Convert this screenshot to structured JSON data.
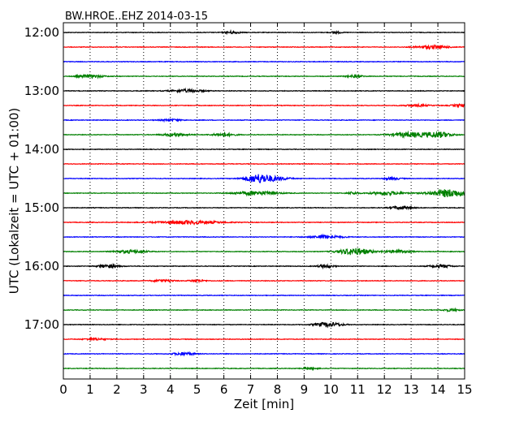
{
  "chart_data": {
    "type": "line",
    "title": "BW.HROE..EHZ 2014-03-15",
    "xlabel": "Zeit  [min]",
    "ylabel": "UTC (Lokalzeit = UTC + 01:00)",
    "xlim": [
      0,
      15
    ],
    "x_ticks": [
      "0",
      "1",
      "2",
      "3",
      "4",
      "5",
      "6",
      "7",
      "8",
      "9",
      "10",
      "11",
      "12",
      "13",
      "14",
      "15"
    ],
    "y_ticks": [
      "12:00",
      "13:00",
      "14:00",
      "15:00",
      "16:00",
      "17:00"
    ],
    "grid": "vertical dotted",
    "trace_colors": [
      "#000000",
      "#ff0000",
      "#0000ff",
      "#008000"
    ],
    "traces": [
      {
        "start": "12:00",
        "color": "#000000",
        "bursts": [
          {
            "x": 6.3,
            "amp": 0.25,
            "width": 0.3
          },
          {
            "x": 10.2,
            "amp": 0.2,
            "width": 0.2
          }
        ]
      },
      {
        "start": "12:15",
        "color": "#ff0000",
        "bursts": [
          {
            "x": 13.8,
            "amp": 0.35,
            "width": 0.6
          }
        ]
      },
      {
        "start": "12:30",
        "color": "#0000ff",
        "bursts": []
      },
      {
        "start": "12:45",
        "color": "#008000",
        "bursts": [
          {
            "x": 1.0,
            "amp": 0.3,
            "width": 0.5
          },
          {
            "x": 10.9,
            "amp": 0.25,
            "width": 0.3
          }
        ]
      },
      {
        "start": "13:00",
        "color": "#000000",
        "bursts": [
          {
            "x": 4.6,
            "amp": 0.3,
            "width": 0.6
          }
        ]
      },
      {
        "start": "13:15",
        "color": "#ff0000",
        "bursts": [
          {
            "x": 13.2,
            "amp": 0.2,
            "width": 0.5
          },
          {
            "x": 14.8,
            "amp": 0.25,
            "width": 0.3
          }
        ]
      },
      {
        "start": "13:30",
        "color": "#0000ff",
        "bursts": [
          {
            "x": 4.0,
            "amp": 0.2,
            "width": 0.4
          }
        ]
      },
      {
        "start": "13:45",
        "color": "#008000",
        "bursts": [
          {
            "x": 4.2,
            "amp": 0.3,
            "width": 0.5
          },
          {
            "x": 6.0,
            "amp": 0.35,
            "width": 0.4
          },
          {
            "x": 12.9,
            "amp": 0.5,
            "width": 0.6
          },
          {
            "x": 14.0,
            "amp": 0.6,
            "width": 0.5
          }
        ]
      },
      {
        "start": "14:00",
        "color": "#000000",
        "bursts": []
      },
      {
        "start": "14:15",
        "color": "#ff0000",
        "bursts": []
      },
      {
        "start": "14:30",
        "color": "#0000ff",
        "bursts": [
          {
            "x": 7.3,
            "amp": 0.9,
            "width": 0.5
          },
          {
            "x": 8.0,
            "amp": 0.3,
            "width": 0.5
          },
          {
            "x": 12.3,
            "amp": 0.25,
            "width": 0.3
          }
        ]
      },
      {
        "start": "14:45",
        "color": "#008000",
        "bursts": [
          {
            "x": 7.2,
            "amp": 0.4,
            "width": 0.8
          },
          {
            "x": 10.8,
            "amp": 0.25,
            "width": 0.2
          },
          {
            "x": 12.1,
            "amp": 0.35,
            "width": 0.6
          },
          {
            "x": 14.4,
            "amp": 0.8,
            "width": 0.7
          }
        ]
      },
      {
        "start": "15:00",
        "color": "#000000",
        "bursts": [
          {
            "x": 12.6,
            "amp": 0.3,
            "width": 0.4
          }
        ]
      },
      {
        "start": "15:15",
        "color": "#ff0000",
        "bursts": [
          {
            "x": 4.7,
            "amp": 0.35,
            "width": 1.2
          }
        ]
      },
      {
        "start": "15:30",
        "color": "#0000ff",
        "bursts": [
          {
            "x": 9.8,
            "amp": 0.35,
            "width": 0.6
          }
        ]
      },
      {
        "start": "15:45",
        "color": "#008000",
        "bursts": [
          {
            "x": 2.5,
            "amp": 0.3,
            "width": 0.6
          },
          {
            "x": 10.9,
            "amp": 0.7,
            "width": 0.6
          },
          {
            "x": 12.5,
            "amp": 0.3,
            "width": 0.5
          }
        ]
      },
      {
        "start": "16:00",
        "color": "#000000",
        "bursts": [
          {
            "x": 1.7,
            "amp": 0.35,
            "width": 0.4
          },
          {
            "x": 9.8,
            "amp": 0.3,
            "width": 0.3
          },
          {
            "x": 14.1,
            "amp": 0.3,
            "width": 0.4
          }
        ]
      },
      {
        "start": "16:15",
        "color": "#ff0000",
        "bursts": [
          {
            "x": 3.7,
            "amp": 0.25,
            "width": 0.4
          },
          {
            "x": 5.0,
            "amp": 0.25,
            "width": 0.3
          }
        ]
      },
      {
        "start": "16:30",
        "color": "#0000ff",
        "bursts": []
      },
      {
        "start": "16:45",
        "color": "#008000",
        "bursts": [
          {
            "x": 14.5,
            "amp": 0.25,
            "width": 0.3
          }
        ]
      },
      {
        "start": "17:00",
        "color": "#000000",
        "bursts": [
          {
            "x": 9.9,
            "amp": 0.45,
            "width": 0.5
          }
        ]
      },
      {
        "start": "17:15",
        "color": "#ff0000",
        "bursts": [
          {
            "x": 1.2,
            "amp": 0.2,
            "width": 0.4
          }
        ]
      },
      {
        "start": "17:30",
        "color": "#0000ff",
        "bursts": [
          {
            "x": 4.5,
            "amp": 0.3,
            "width": 0.4
          }
        ]
      },
      {
        "start": "17:45",
        "color": "#008000",
        "bursts": [
          {
            "x": 9.2,
            "amp": 0.2,
            "width": 0.3
          }
        ]
      }
    ]
  }
}
